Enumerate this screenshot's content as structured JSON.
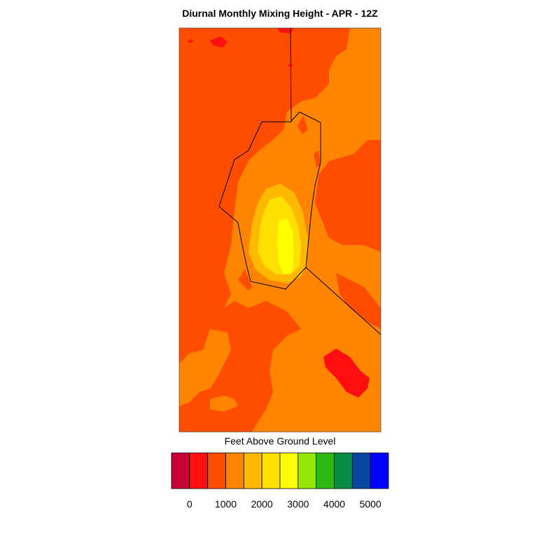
{
  "title": "Diurnal Monthly Mixing Height - APR - 12Z",
  "colorbar": {
    "title": "Feet Above Ground Level",
    "colors": [
      "#c80036",
      "#ff0f0f",
      "#ff4d00",
      "#ff8500",
      "#ffb800",
      "#ffe000",
      "#ffff00",
      "#96e60a",
      "#2db814",
      "#0a8c46",
      "#0a46a0",
      "#0000ff"
    ],
    "tick_labels": [
      "0",
      "1000",
      "2000",
      "3000",
      "4000",
      "5000"
    ]
  },
  "map": {
    "background": "#ff4d00",
    "fill_colors": {
      "level_1": "#ff0f0f",
      "level_2": "#ff4d00",
      "level_3": "#ff8500",
      "level_4": "#ffb800",
      "level_5": "#ffe000",
      "level_6": "#ffff00"
    },
    "boundary_color": "#000000"
  }
}
